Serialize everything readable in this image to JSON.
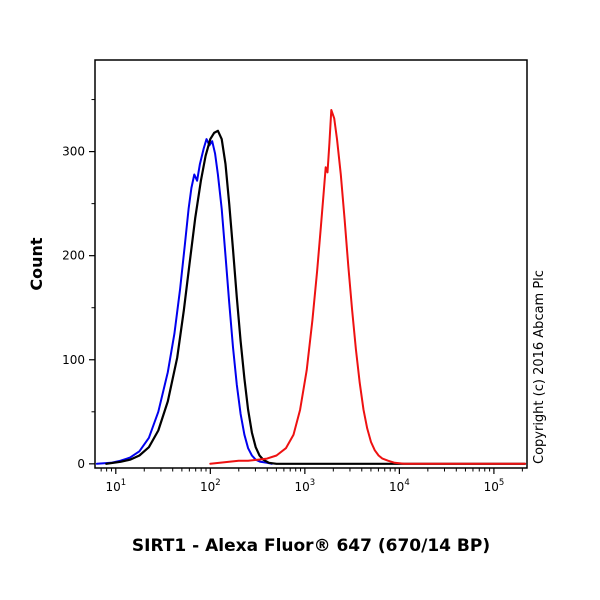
{
  "chart": {
    "title": "SIRT1 - Alexa Fluor® 647 (670/14 BP)",
    "ylabel": "Count",
    "copyright": "Copyright (c) 2016 Abcam Plc"
  },
  "chart_data": {
    "type": "line",
    "subtype": "flow-cytometry-histogram",
    "title": "SIRT1 - Alexa Fluor® 647 (670/14 BP)",
    "xlabel": "SIRT1 - Alexa Fluor® 647 (670/14 BP)",
    "ylabel": "Count",
    "x_scale": "log10",
    "x_range_log10": [
      0.78,
      5.35
    ],
    "x_major_ticks_log10": [
      1,
      2,
      3,
      4,
      5
    ],
    "x_tick_labels": [
      "10^1",
      "10^2",
      "10^3",
      "10^4",
      "10^5"
    ],
    "ylim": [
      -4,
      388
    ],
    "y_ticks": [
      0,
      100,
      200,
      300
    ],
    "y_minor_step": 50,
    "grid": false,
    "legend": null,
    "frame": "box",
    "series": [
      {
        "name": "blue-curve",
        "color": "#0000ee",
        "width": 2,
        "peak_x": 100,
        "peak_count": 312,
        "points": [
          [
            0.8,
            0
          ],
          [
            0.95,
            1
          ],
          [
            1.05,
            3
          ],
          [
            1.15,
            6
          ],
          [
            1.25,
            12
          ],
          [
            1.35,
            25
          ],
          [
            1.45,
            50
          ],
          [
            1.55,
            88
          ],
          [
            1.62,
            125
          ],
          [
            1.68,
            168
          ],
          [
            1.73,
            210
          ],
          [
            1.77,
            245
          ],
          [
            1.8,
            265
          ],
          [
            1.83,
            278
          ],
          [
            1.86,
            272
          ],
          [
            1.89,
            288
          ],
          [
            1.93,
            303
          ],
          [
            1.96,
            312
          ],
          [
            1.99,
            306
          ],
          [
            2.02,
            310
          ],
          [
            2.05,
            298
          ],
          [
            2.08,
            278
          ],
          [
            2.12,
            245
          ],
          [
            2.16,
            200
          ],
          [
            2.2,
            155
          ],
          [
            2.24,
            112
          ],
          [
            2.28,
            76
          ],
          [
            2.32,
            48
          ],
          [
            2.36,
            28
          ],
          [
            2.4,
            15
          ],
          [
            2.44,
            8
          ],
          [
            2.48,
            4
          ],
          [
            2.53,
            2
          ],
          [
            2.6,
            1
          ],
          [
            2.65,
            0
          ]
        ]
      },
      {
        "name": "black-curve",
        "color": "#000000",
        "width": 2.2,
        "peak_x": 120,
        "peak_count": 320,
        "points": [
          [
            0.9,
            0
          ],
          [
            1.05,
            2
          ],
          [
            1.15,
            4
          ],
          [
            1.25,
            8
          ],
          [
            1.35,
            16
          ],
          [
            1.45,
            32
          ],
          [
            1.55,
            60
          ],
          [
            1.65,
            102
          ],
          [
            1.72,
            148
          ],
          [
            1.78,
            192
          ],
          [
            1.84,
            236
          ],
          [
            1.9,
            272
          ],
          [
            1.95,
            296
          ],
          [
            2.0,
            312
          ],
          [
            2.04,
            318
          ],
          [
            2.08,
            320
          ],
          [
            2.12,
            312
          ],
          [
            2.16,
            288
          ],
          [
            2.2,
            250
          ],
          [
            2.24,
            206
          ],
          [
            2.28,
            160
          ],
          [
            2.32,
            118
          ],
          [
            2.36,
            82
          ],
          [
            2.4,
            52
          ],
          [
            2.44,
            30
          ],
          [
            2.48,
            16
          ],
          [
            2.52,
            8
          ],
          [
            2.56,
            4
          ],
          [
            2.62,
            1
          ],
          [
            2.7,
            0
          ],
          [
            3.5,
            0
          ],
          [
            4.5,
            0
          ],
          [
            5.33,
            0
          ]
        ]
      },
      {
        "name": "red-curve",
        "color": "#ee1111",
        "width": 2,
        "peak_x": 1900,
        "peak_count": 340,
        "points": [
          [
            2.0,
            0
          ],
          [
            2.1,
            1
          ],
          [
            2.2,
            2
          ],
          [
            2.3,
            3
          ],
          [
            2.4,
            3
          ],
          [
            2.5,
            4
          ],
          [
            2.6,
            5
          ],
          [
            2.7,
            8
          ],
          [
            2.8,
            15
          ],
          [
            2.88,
            28
          ],
          [
            2.95,
            52
          ],
          [
            3.02,
            90
          ],
          [
            3.08,
            138
          ],
          [
            3.13,
            185
          ],
          [
            3.17,
            228
          ],
          [
            3.2,
            262
          ],
          [
            3.22,
            285
          ],
          [
            3.24,
            280
          ],
          [
            3.26,
            308
          ],
          [
            3.28,
            340
          ],
          [
            3.31,
            332
          ],
          [
            3.34,
            312
          ],
          [
            3.38,
            278
          ],
          [
            3.42,
            235
          ],
          [
            3.46,
            190
          ],
          [
            3.5,
            148
          ],
          [
            3.54,
            110
          ],
          [
            3.58,
            78
          ],
          [
            3.62,
            52
          ],
          [
            3.66,
            34
          ],
          [
            3.7,
            21
          ],
          [
            3.74,
            13
          ],
          [
            3.78,
            8
          ],
          [
            3.82,
            5
          ],
          [
            3.88,
            3
          ],
          [
            3.95,
            1
          ],
          [
            4.05,
            0
          ],
          [
            4.4,
            0
          ],
          [
            4.8,
            0
          ],
          [
            5.33,
            0
          ]
        ]
      }
    ]
  }
}
